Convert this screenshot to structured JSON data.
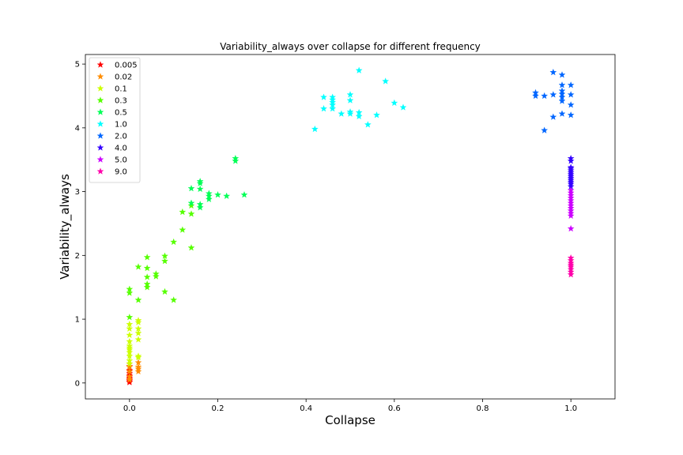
{
  "chart_data": {
    "type": "scatter",
    "title": "Variability_always over collapse for different frequency",
    "xlabel": "Collapse",
    "ylabel": "Variability_always",
    "xlim": [
      -0.1,
      1.1
    ],
    "ylim": [
      -0.25,
      5.15
    ],
    "xticks": [
      "0.0",
      "0.2",
      "0.4",
      "0.6",
      "0.8",
      "1.0"
    ],
    "yticks": [
      "0",
      "1",
      "2",
      "3",
      "4",
      "5"
    ],
    "grid": false,
    "legend_position": "top-left",
    "marker": "star",
    "series": [
      {
        "name": "0.005",
        "color": "#ff0000",
        "points": [
          [
            0,
            0.01
          ],
          [
            0,
            0.02
          ],
          [
            0,
            0.04
          ],
          [
            0,
            0.06
          ],
          [
            0,
            0.08
          ],
          [
            0,
            0.1
          ],
          [
            0,
            0.12
          ],
          [
            0,
            0.15
          ],
          [
            0,
            0.18
          ],
          [
            0,
            0.2
          ],
          [
            0,
            0.26
          ]
        ]
      },
      {
        "name": "0.02",
        "color": "#ff8c00",
        "points": [
          [
            0,
            0.05
          ],
          [
            0,
            0.1
          ],
          [
            0,
            0.18
          ],
          [
            0,
            0.25
          ],
          [
            0,
            0.3
          ],
          [
            0.02,
            0.18
          ],
          [
            0.02,
            0.22
          ],
          [
            0.02,
            0.25
          ],
          [
            0.02,
            0.32
          ]
        ]
      },
      {
        "name": "0.1",
        "color": "#ccff00",
        "points": [
          [
            0,
            0.3
          ],
          [
            0,
            0.35
          ],
          [
            0,
            0.42
          ],
          [
            0,
            0.48
          ],
          [
            0,
            0.52
          ],
          [
            0,
            0.55
          ],
          [
            0,
            0.58
          ],
          [
            0,
            0.65
          ],
          [
            0,
            0.75
          ],
          [
            0,
            0.85
          ],
          [
            0,
            0.92
          ],
          [
            0.02,
            0.4
          ],
          [
            0.02,
            0.42
          ],
          [
            0.02,
            0.68
          ],
          [
            0.02,
            0.78
          ],
          [
            0.02,
            0.85
          ],
          [
            0.02,
            0.95
          ],
          [
            0.02,
            0.98
          ]
        ]
      },
      {
        "name": "0.3",
        "color": "#55ff00",
        "points": [
          [
            0,
            1.03
          ],
          [
            0,
            1.41
          ],
          [
            0,
            1.47
          ],
          [
            0.02,
            1.3
          ],
          [
            0.02,
            1.82
          ],
          [
            0.04,
            1.5
          ],
          [
            0.04,
            1.55
          ],
          [
            0.04,
            1.66
          ],
          [
            0.04,
            1.8
          ],
          [
            0.04,
            1.97
          ],
          [
            0.06,
            1.67
          ],
          [
            0.06,
            1.71
          ],
          [
            0.08,
            1.43
          ],
          [
            0.08,
            1.91
          ],
          [
            0.08,
            1.99
          ],
          [
            0.1,
            1.3
          ],
          [
            0.1,
            2.21
          ],
          [
            0.12,
            2.4
          ],
          [
            0.12,
            2.68
          ],
          [
            0.14,
            2.12
          ],
          [
            0.14,
            2.65
          ],
          [
            0.14,
            2.78
          ]
        ]
      },
      {
        "name": "0.5",
        "color": "#00ff55",
        "points": [
          [
            0.14,
            2.82
          ],
          [
            0.14,
            3.05
          ],
          [
            0.16,
            2.75
          ],
          [
            0.16,
            2.8
          ],
          [
            0.16,
            3.04
          ],
          [
            0.16,
            3.13
          ],
          [
            0.16,
            3.16
          ],
          [
            0.18,
            2.88
          ],
          [
            0.18,
            2.93
          ],
          [
            0.18,
            2.97
          ],
          [
            0.2,
            2.95
          ],
          [
            0.22,
            2.93
          ],
          [
            0.24,
            3.48
          ],
          [
            0.24,
            3.52
          ],
          [
            0.26,
            2.95
          ]
        ]
      },
      {
        "name": "1.0",
        "color": "#00ffff",
        "points": [
          [
            0.42,
            3.98
          ],
          [
            0.44,
            4.3
          ],
          [
            0.44,
            4.48
          ],
          [
            0.46,
            4.3
          ],
          [
            0.46,
            4.36
          ],
          [
            0.46,
            4.4
          ],
          [
            0.46,
            4.44
          ],
          [
            0.46,
            4.48
          ],
          [
            0.48,
            4.22
          ],
          [
            0.5,
            4.22
          ],
          [
            0.5,
            4.25
          ],
          [
            0.5,
            4.43
          ],
          [
            0.5,
            4.52
          ],
          [
            0.52,
            4.18
          ],
          [
            0.52,
            4.24
          ],
          [
            0.52,
            4.9
          ],
          [
            0.54,
            4.05
          ],
          [
            0.56,
            4.2
          ],
          [
            0.58,
            4.73
          ],
          [
            0.6,
            4.39
          ],
          [
            0.62,
            4.32
          ]
        ]
      },
      {
        "name": "2.0",
        "color": "#0066ff",
        "points": [
          [
            0.92,
            4.5
          ],
          [
            0.92,
            4.55
          ],
          [
            0.94,
            3.96
          ],
          [
            0.94,
            4.5
          ],
          [
            0.96,
            4.17
          ],
          [
            0.96,
            4.52
          ],
          [
            0.96,
            4.87
          ],
          [
            0.98,
            4.22
          ],
          [
            0.98,
            4.42
          ],
          [
            0.98,
            4.48
          ],
          [
            0.98,
            4.53
          ],
          [
            0.98,
            4.58
          ],
          [
            0.98,
            4.67
          ],
          [
            0.98,
            4.83
          ],
          [
            1.0,
            4.2
          ],
          [
            1.0,
            4.36
          ],
          [
            1.0,
            4.52
          ],
          [
            1.0,
            4.67
          ]
        ]
      },
      {
        "name": "4.0",
        "color": "#3300ff",
        "points": [
          [
            1.0,
            3.08
          ],
          [
            1.0,
            3.12
          ],
          [
            1.0,
            3.15
          ],
          [
            1.0,
            3.18
          ],
          [
            1.0,
            3.21
          ],
          [
            1.0,
            3.24
          ],
          [
            1.0,
            3.27
          ],
          [
            1.0,
            3.3
          ],
          [
            1.0,
            3.33
          ],
          [
            1.0,
            3.36
          ],
          [
            1.0,
            3.38
          ],
          [
            1.0,
            3.48
          ],
          [
            1.0,
            3.52
          ]
        ]
      },
      {
        "name": "5.0",
        "color": "#cc00ff",
        "points": [
          [
            1.0,
            2.42
          ],
          [
            1.0,
            2.62
          ],
          [
            1.0,
            2.66
          ],
          [
            1.0,
            2.7
          ],
          [
            1.0,
            2.74
          ],
          [
            1.0,
            2.78
          ],
          [
            1.0,
            2.82
          ],
          [
            1.0,
            2.86
          ],
          [
            1.0,
            2.9
          ],
          [
            1.0,
            2.94
          ],
          [
            1.0,
            2.98
          ],
          [
            1.0,
            3.02
          ]
        ]
      },
      {
        "name": "9.0",
        "color": "#ff00aa",
        "points": [
          [
            1.0,
            1.7
          ],
          [
            1.0,
            1.74
          ],
          [
            1.0,
            1.78
          ],
          [
            1.0,
            1.82
          ],
          [
            1.0,
            1.85
          ],
          [
            1.0,
            1.88
          ],
          [
            1.0,
            1.92
          ],
          [
            1.0,
            1.96
          ]
        ]
      }
    ]
  }
}
